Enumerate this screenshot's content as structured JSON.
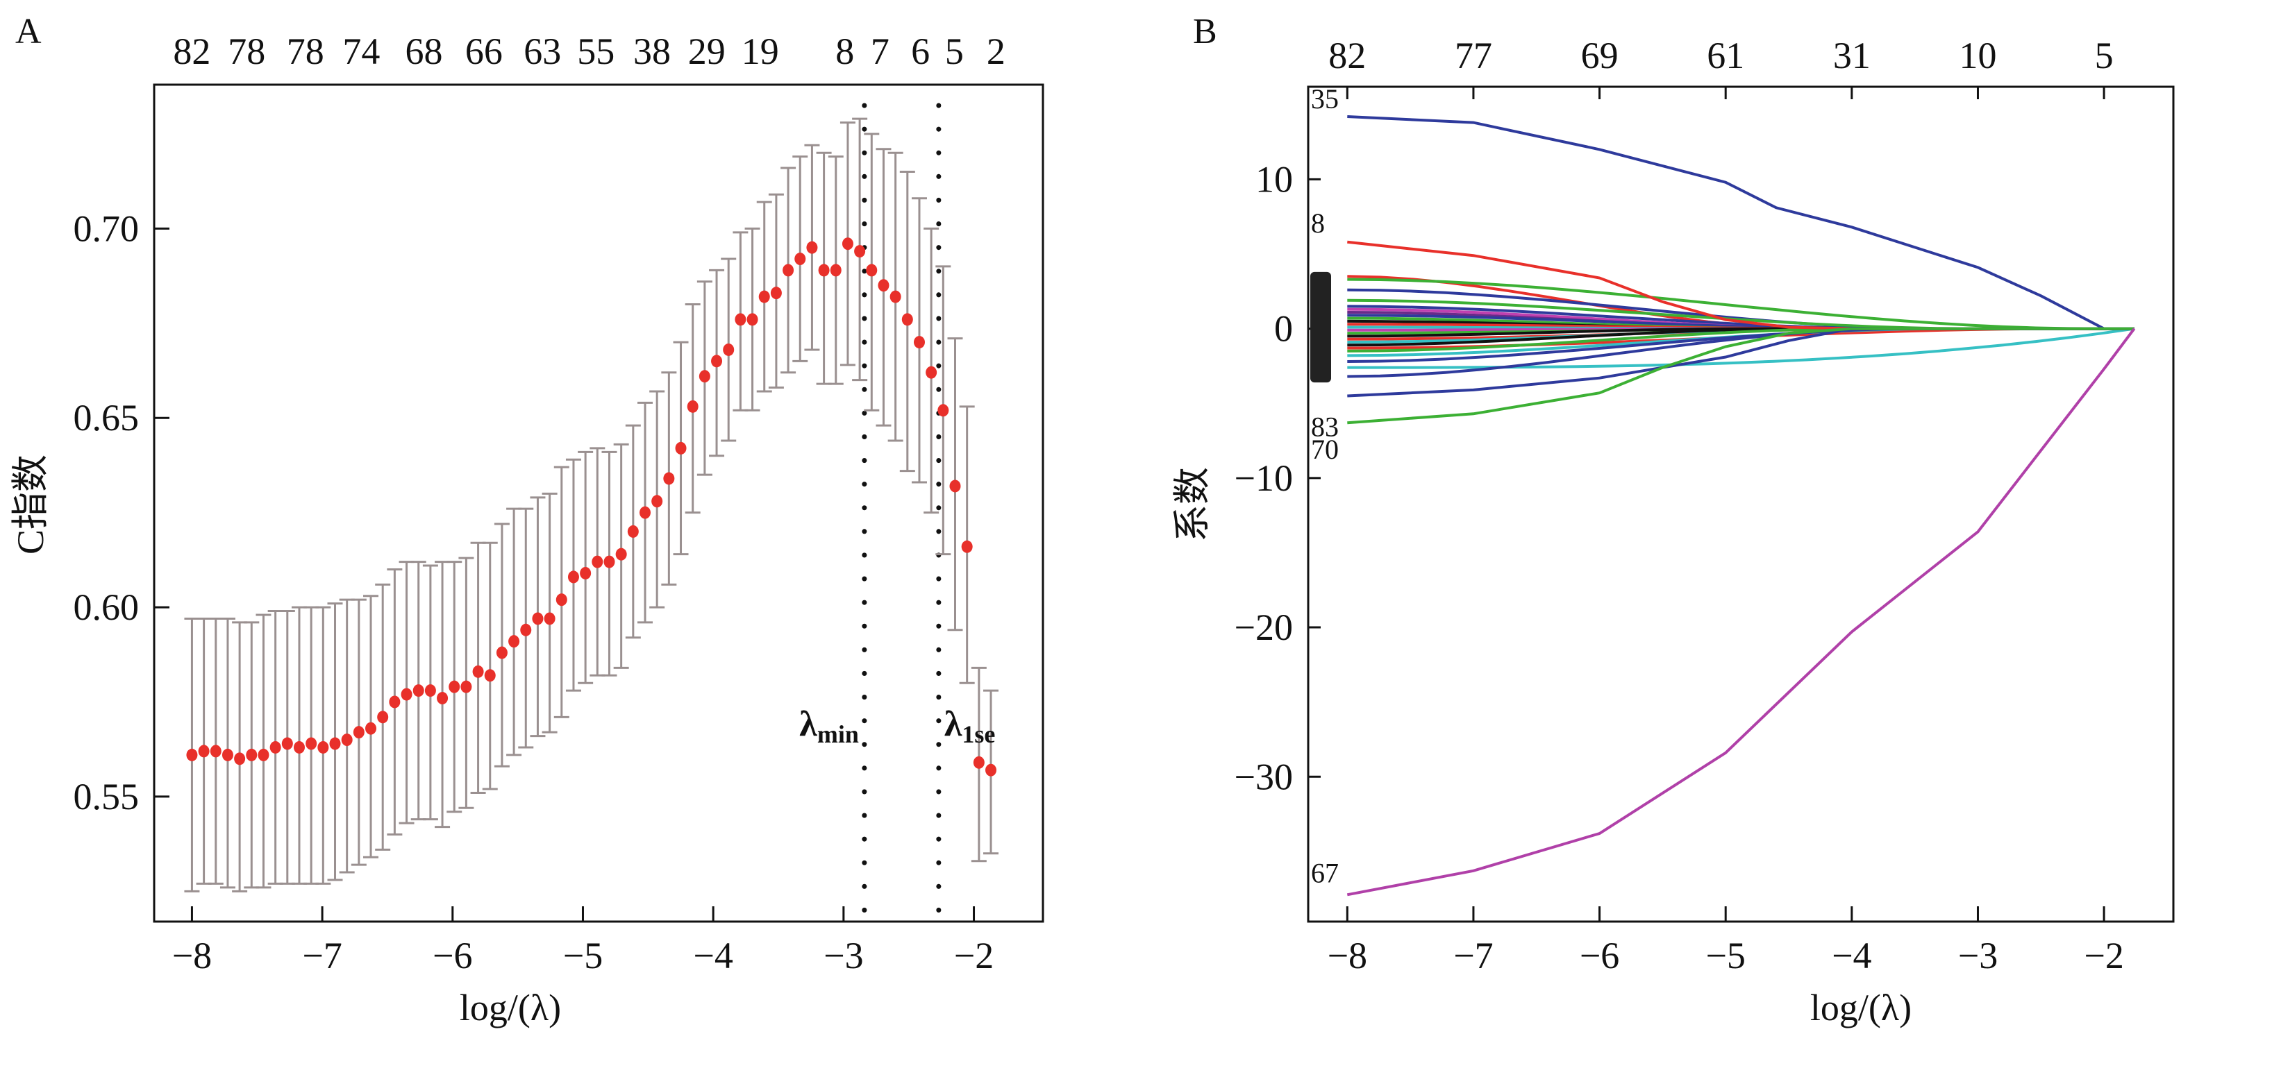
{
  "panels": {
    "a_label": "A",
    "b_label": "B"
  },
  "chart_data": [
    {
      "type": "scatter",
      "subtype": "cross-validation error bars",
      "panel": "A",
      "xlabel": "log/(λ)",
      "ylabel": "C指数",
      "xlim": [
        -8.29,
        -1.47
      ],
      "ylim": [
        0.517,
        0.738
      ],
      "xticks": [
        -8,
        -7,
        -6,
        -5,
        -4,
        -3,
        -2
      ],
      "xtick_labels": [
        "−8",
        "−7",
        "−6",
        "−5",
        "−4",
        "−3",
        "−2"
      ],
      "yticks": [
        0.55,
        0.6,
        0.65,
        0.7
      ],
      "ytick_labels": [
        "0.55",
        "0.60",
        "0.65",
        "0.70"
      ],
      "top_axis_labels": [
        "82",
        "78",
        "78",
        "74",
        "68",
        "66",
        "63",
        "55",
        "38",
        "29",
        "19",
        "8",
        "7",
        "6",
        "5",
        "2"
      ],
      "top_axis_x": [
        -8.0,
        -7.58,
        -7.13,
        -6.7,
        -6.22,
        -5.76,
        -5.31,
        -4.9,
        -4.47,
        -4.05,
        -3.64,
        -2.99,
        -2.72,
        -2.41,
        -2.15,
        -1.83
      ],
      "vlines": [
        {
          "name": "λmin",
          "main": "λ",
          "sub": "min",
          "x": -2.84
        },
        {
          "name": "λ1se",
          "main": "λ",
          "sub": "1se",
          "x": -2.27
        }
      ],
      "point_color": "#e8302a",
      "errorbar_color": "#9a9090",
      "x_start": -8.0,
      "x_step": 0.0915,
      "mean": [
        0.561,
        0.562,
        0.562,
        0.561,
        0.56,
        0.561,
        0.561,
        0.563,
        0.564,
        0.563,
        0.564,
        0.563,
        0.564,
        0.565,
        0.567,
        0.568,
        0.571,
        0.575,
        0.577,
        0.578,
        0.578,
        0.576,
        0.579,
        0.579,
        0.583,
        0.582,
        0.588,
        0.591,
        0.594,
        0.597,
        0.597,
        0.602,
        0.608,
        0.609,
        0.612,
        0.612,
        0.614,
        0.62,
        0.625,
        0.628,
        0.634,
        0.642,
        0.653,
        0.661,
        0.665,
        0.668,
        0.676,
        0.676,
        0.682,
        0.683,
        0.689,
        0.692,
        0.695,
        0.689,
        0.689,
        0.696,
        0.694,
        0.689,
        0.685,
        0.682,
        0.676,
        0.67,
        0.662,
        0.652,
        0.632,
        0.616,
        0.559,
        0.557
      ],
      "upper": [
        0.597,
        0.597,
        0.597,
        0.597,
        0.596,
        0.596,
        0.598,
        0.599,
        0.599,
        0.6,
        0.6,
        0.6,
        0.601,
        0.602,
        0.602,
        0.603,
        0.606,
        0.61,
        0.612,
        0.612,
        0.611,
        0.612,
        0.612,
        0.613,
        0.617,
        0.617,
        0.622,
        0.626,
        0.626,
        0.629,
        0.63,
        0.637,
        0.639,
        0.641,
        0.642,
        0.641,
        0.643,
        0.648,
        0.654,
        0.657,
        0.662,
        0.67,
        0.68,
        0.686,
        0.689,
        0.692,
        0.699,
        0.7,
        0.707,
        0.709,
        0.716,
        0.719,
        0.722,
        0.72,
        0.719,
        0.728,
        0.729,
        0.725,
        0.721,
        0.72,
        0.715,
        0.708,
        0.7,
        0.69,
        0.671,
        0.653,
        0.584,
        0.578
      ],
      "lower": [
        0.525,
        0.527,
        0.527,
        0.526,
        0.525,
        0.526,
        0.526,
        0.527,
        0.527,
        0.527,
        0.527,
        0.527,
        0.528,
        0.53,
        0.532,
        0.534,
        0.536,
        0.54,
        0.543,
        0.544,
        0.544,
        0.542,
        0.546,
        0.547,
        0.551,
        0.552,
        0.558,
        0.561,
        0.563,
        0.566,
        0.567,
        0.571,
        0.578,
        0.58,
        0.582,
        0.582,
        0.584,
        0.592,
        0.596,
        0.6,
        0.606,
        0.614,
        0.625,
        0.635,
        0.64,
        0.644,
        0.652,
        0.652,
        0.657,
        0.658,
        0.662,
        0.665,
        0.668,
        0.659,
        0.659,
        0.664,
        0.66,
        0.652,
        0.648,
        0.644,
        0.636,
        0.633,
        0.625,
        0.614,
        0.594,
        0.58,
        0.533,
        0.535
      ]
    },
    {
      "type": "line",
      "subtype": "coefficient paths",
      "panel": "B",
      "xlabel": "log/(λ)",
      "ylabel": "系数",
      "xlim": [
        -8.31,
        -1.45
      ],
      "ylim": [
        -39.7,
        16.2
      ],
      "xticks": [
        -8,
        -7,
        -6,
        -5,
        -4,
        -3,
        -2
      ],
      "xtick_labels": [
        "−8",
        "−7",
        "−6",
        "−5",
        "−4",
        "−3",
        "−2"
      ],
      "yticks": [
        -30,
        -20,
        -10,
        0,
        10
      ],
      "ytick_labels": [
        "−30",
        "−20",
        "−10",
        "0",
        "10"
      ],
      "top_axis_labels": [
        "82",
        "77",
        "69",
        "61",
        "31",
        "10",
        "5"
      ],
      "top_axis_x": [
        -8,
        -7,
        -6,
        -5,
        -4,
        -3,
        -2
      ],
      "x_end": -1.76,
      "labeled_series": [
        {
          "label": "35",
          "color": "#2e3a9c",
          "x": [
            -8,
            -7,
            -6,
            -5,
            -4.6,
            -4,
            -3,
            -2.5,
            -2.0
          ],
          "y": [
            14.2,
            13.8,
            12.0,
            9.8,
            8.1,
            6.8,
            4.1,
            2.2,
            0
          ]
        },
        {
          "label": "8",
          "color": "#e8302a",
          "x": [
            -8,
            -7,
            -6,
            -5.5,
            -5,
            -4.5,
            -4
          ],
          "y": [
            5.8,
            4.9,
            3.4,
            1.8,
            0.6,
            0.1,
            0
          ]
        },
        {
          "label": "83",
          "color": "#2e3a9c",
          "x": [
            -8,
            -7,
            -6,
            -5,
            -4.5,
            -4
          ],
          "y": [
            -4.5,
            -4.1,
            -3.3,
            -1.9,
            -0.8,
            0
          ]
        },
        {
          "label": "70",
          "color": "#3cb034",
          "x": [
            -8,
            -7,
            -6,
            -5.5,
            -5,
            -4.5,
            -4
          ],
          "y": [
            -6.3,
            -5.7,
            -4.3,
            -2.6,
            -1.2,
            -0.3,
            0
          ]
        },
        {
          "label": "67",
          "color": "#b040a8",
          "x": [
            -8,
            -7,
            -6,
            -5,
            -4,
            -3,
            -2,
            -1.76
          ],
          "y": [
            -37.9,
            -36.3,
            -33.8,
            -28.4,
            -20.3,
            -13.6,
            -2.7,
            0
          ]
        }
      ],
      "unlabeled_series": [
        {
          "color": "#e8302a",
          "y0": 3.5,
          "end": -4.3
        },
        {
          "color": "#3cb034",
          "y0": 3.3,
          "end": -2.1
        },
        {
          "color": "#2e3a9c",
          "y0": 2.6,
          "end": -3.3
        },
        {
          "color": "#3cb034",
          "y0": 1.9,
          "end": -3.0
        },
        {
          "color": "#2e3a9c",
          "y0": 1.5,
          "end": -3.6
        },
        {
          "color": "#c040b0",
          "y0": 1.3,
          "end": -4.0
        },
        {
          "color": "#6a2a8a",
          "y0": 1.1,
          "end": -4.2
        },
        {
          "color": "#2e3a9c",
          "y0": 0.9,
          "end": -3.8
        },
        {
          "color": "#3cb034",
          "y0": 0.7,
          "end": -4.4
        },
        {
          "color": "#111111",
          "y0": 0.5,
          "end": -4.6
        },
        {
          "color": "#e8302a",
          "y0": 0.3,
          "end": -4.0
        },
        {
          "color": "#36c0c4",
          "y0": 0.1,
          "end": -4.7
        },
        {
          "color": "#c040b0",
          "y0": -0.1,
          "end": -4.5
        },
        {
          "color": "#3cb034",
          "y0": -0.3,
          "end": -4.2
        },
        {
          "color": "#111111",
          "y0": -0.5,
          "end": -4.8
        },
        {
          "color": "#e8302a",
          "y0": -0.7,
          "end": -3.5
        },
        {
          "color": "#36c0c4",
          "y0": -0.9,
          "end": -4.1
        },
        {
          "color": "#111111",
          "y0": -1.1,
          "end": -4.4
        },
        {
          "color": "#e8302a",
          "y0": -1.3,
          "end": -2.3
        },
        {
          "color": "#3cb034",
          "y0": -1.5,
          "end": -3.9
        },
        {
          "color": "#36c0c4",
          "y0": -1.8,
          "end": -3.2
        },
        {
          "color": "#2e3a9c",
          "y0": -2.2,
          "end": -3.4
        },
        {
          "color": "#36c0c4",
          "y0": -2.6,
          "end": -1.8,
          "slow": true
        },
        {
          "color": "#2e3a9c",
          "y0": -3.2,
          "end": -3.6
        }
      ]
    }
  ]
}
